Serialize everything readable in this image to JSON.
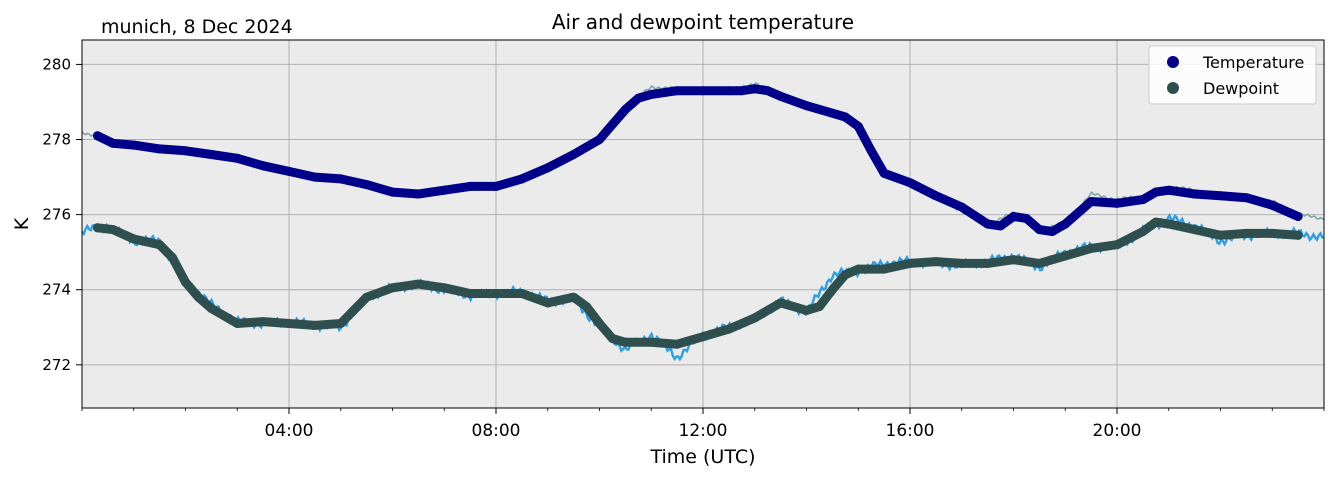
{
  "chart_data": {
    "type": "line",
    "title": "Air and dewpoint temperature",
    "subtitle": "munich, 8 Dec 2024",
    "xlabel": "Time (UTC)",
    "ylabel": "K",
    "x_unit": "hours UTC",
    "xlim": [
      0,
      24
    ],
    "ylim": [
      270.85,
      280.65
    ],
    "x_ticks": [
      {
        "value": 4,
        "label": "04:00"
      },
      {
        "value": 8,
        "label": "08:00"
      },
      {
        "value": 12,
        "label": "12:00"
      },
      {
        "value": 16,
        "label": "16:00"
      },
      {
        "value": 20,
        "label": "20:00"
      }
    ],
    "y_ticks": [
      272,
      274,
      276,
      278,
      280
    ],
    "grid": true,
    "legend_position": "top-right",
    "background_color": "#ebebeb",
    "series": [
      {
        "name": "Temperature",
        "role": "smoothed",
        "color": "#00008b",
        "x": [
          0.3,
          0.6,
          1.0,
          1.5,
          2.0,
          2.5,
          3.0,
          3.5,
          4.0,
          4.5,
          5.0,
          5.5,
          6.0,
          6.5,
          7.0,
          7.5,
          8.0,
          8.5,
          9.0,
          9.5,
          10.0,
          10.25,
          10.5,
          10.75,
          11.0,
          11.5,
          12.0,
          12.5,
          12.75,
          13.0,
          13.25,
          13.5,
          14.0,
          14.5,
          14.75,
          15.0,
          15.25,
          15.5,
          16.0,
          16.5,
          17.0,
          17.5,
          17.75,
          18.0,
          18.25,
          18.5,
          18.75,
          19.0,
          19.5,
          20.0,
          20.5,
          20.75,
          21.0,
          21.5,
          22.0,
          22.5,
          23.0,
          23.5
        ],
        "y": [
          278.1,
          277.9,
          277.85,
          277.75,
          277.7,
          277.6,
          277.5,
          277.3,
          277.15,
          277.0,
          276.95,
          276.8,
          276.6,
          276.55,
          276.65,
          276.75,
          276.75,
          276.95,
          277.25,
          277.6,
          278.0,
          278.4,
          278.8,
          279.1,
          279.2,
          279.3,
          279.3,
          279.3,
          279.3,
          279.35,
          279.3,
          279.15,
          278.9,
          278.7,
          278.6,
          278.35,
          277.7,
          277.1,
          276.85,
          276.5,
          276.2,
          275.75,
          275.7,
          275.95,
          275.9,
          275.6,
          275.55,
          275.75,
          276.35,
          276.3,
          276.4,
          276.6,
          276.65,
          276.55,
          276.5,
          276.45,
          276.25,
          275.95
        ]
      },
      {
        "name": "Dewpoint",
        "role": "smoothed",
        "color": "#2f4f4f",
        "x": [
          0.3,
          0.6,
          1.0,
          1.5,
          1.75,
          2.0,
          2.25,
          2.5,
          3.0,
          3.5,
          4.0,
          4.5,
          5.0,
          5.25,
          5.5,
          6.0,
          6.5,
          7.0,
          7.5,
          8.0,
          8.5,
          9.0,
          9.5,
          9.75,
          10.0,
          10.25,
          10.5,
          11.0,
          11.5,
          12.0,
          12.5,
          13.0,
          13.5,
          13.75,
          14.0,
          14.25,
          14.5,
          14.75,
          15.0,
          15.5,
          16.0,
          16.5,
          17.0,
          17.5,
          18.0,
          18.5,
          19.0,
          19.5,
          20.0,
          20.5,
          20.75,
          21.0,
          21.5,
          22.0,
          22.5,
          23.0,
          23.5
        ],
        "y": [
          275.65,
          275.6,
          275.35,
          275.2,
          274.85,
          274.2,
          273.8,
          273.5,
          273.1,
          273.15,
          273.1,
          273.05,
          273.1,
          273.45,
          273.8,
          274.05,
          274.15,
          274.05,
          273.9,
          273.9,
          273.9,
          273.65,
          273.8,
          273.55,
          273.1,
          272.7,
          272.6,
          272.6,
          272.55,
          272.75,
          272.95,
          273.25,
          273.65,
          273.55,
          273.45,
          273.55,
          274.0,
          274.4,
          274.55,
          274.55,
          274.7,
          274.75,
          274.7,
          274.7,
          274.8,
          274.7,
          274.9,
          275.1,
          275.2,
          275.55,
          275.8,
          275.75,
          275.6,
          275.45,
          275.5,
          275.5,
          275.45
        ]
      },
      {
        "name": "Temperature (raw)",
        "role": "raw",
        "color": "#7ba7a7",
        "x": [
          0.0,
          0.5,
          1.0,
          1.5,
          2.0,
          2.5,
          3.0,
          3.5,
          4.0,
          4.5,
          5.0,
          5.5,
          6.0,
          6.5,
          7.0,
          7.5,
          8.0,
          8.5,
          9.0,
          9.5,
          10.0,
          10.5,
          11.0,
          11.5,
          12.0,
          12.5,
          13.0,
          13.5,
          14.0,
          14.5,
          15.0,
          15.5,
          16.0,
          16.5,
          17.0,
          17.5,
          18.0,
          18.5,
          19.0,
          19.5,
          20.0,
          20.5,
          21.0,
          21.5,
          22.0,
          22.5,
          23.0,
          23.5,
          24.0
        ],
        "y": [
          278.2,
          278.0,
          277.85,
          277.75,
          277.7,
          277.6,
          277.5,
          277.3,
          277.15,
          277.0,
          277.0,
          276.85,
          276.65,
          276.5,
          276.7,
          276.8,
          276.7,
          276.95,
          277.25,
          277.6,
          278.0,
          278.85,
          279.4,
          279.35,
          279.3,
          279.3,
          279.5,
          279.15,
          278.9,
          278.7,
          278.3,
          277.15,
          276.85,
          276.5,
          276.1,
          275.7,
          276.05,
          275.6,
          275.8,
          276.55,
          276.4,
          276.5,
          276.75,
          276.65,
          276.5,
          276.5,
          276.35,
          276.0,
          275.9
        ]
      },
      {
        "name": "Dewpoint (raw)",
        "role": "raw",
        "color": "#2b9fe8",
        "x": [
          0.0,
          0.5,
          1.0,
          1.5,
          2.0,
          2.5,
          3.0,
          3.5,
          4.0,
          4.5,
          5.0,
          5.5,
          6.0,
          6.5,
          7.0,
          7.5,
          8.0,
          8.5,
          9.0,
          9.5,
          10.0,
          10.5,
          11.0,
          11.5,
          12.0,
          12.5,
          13.0,
          13.5,
          14.0,
          14.5,
          15.0,
          15.5,
          16.0,
          16.5,
          17.0,
          17.5,
          18.0,
          18.5,
          19.0,
          19.5,
          20.0,
          20.5,
          21.0,
          21.5,
          22.0,
          22.5,
          23.0,
          23.5,
          24.0
        ],
        "y": [
          275.55,
          275.7,
          275.3,
          275.3,
          274.25,
          273.6,
          273.15,
          273.1,
          273.15,
          273.05,
          273.0,
          273.8,
          274.05,
          274.15,
          274.0,
          273.85,
          273.9,
          273.95,
          273.7,
          273.75,
          273.0,
          272.4,
          272.8,
          272.2,
          272.8,
          273.0,
          273.2,
          273.7,
          273.4,
          274.4,
          274.5,
          274.7,
          274.75,
          274.7,
          274.65,
          274.75,
          274.9,
          274.6,
          275.0,
          275.15,
          275.15,
          275.55,
          275.9,
          275.7,
          275.3,
          275.45,
          275.5,
          275.5,
          275.4
        ]
      }
    ]
  }
}
